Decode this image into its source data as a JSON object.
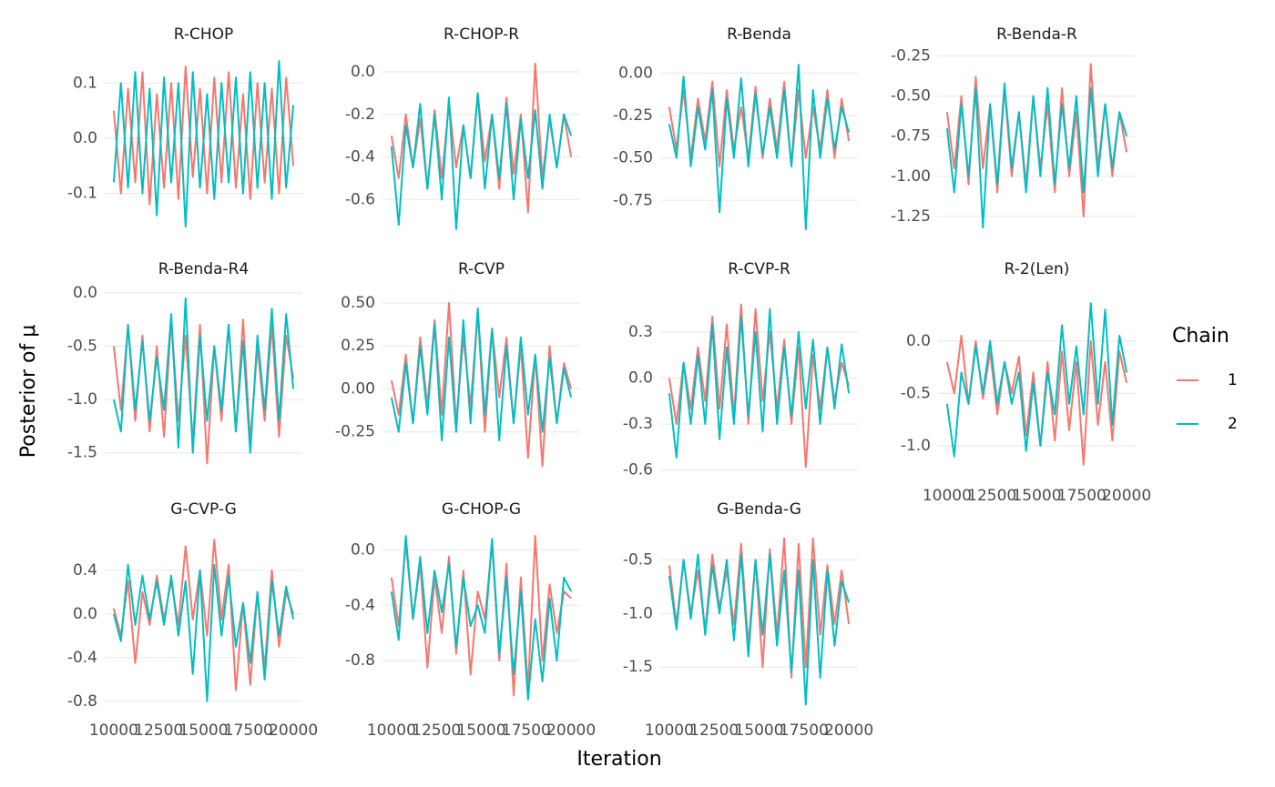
{
  "chart_data": {
    "type": "line",
    "x_label": "Iteration",
    "y_label": "Posterior of μ",
    "legend_title": "Chain",
    "grid": true,
    "series": [
      {
        "name": "1",
        "color": "#F8766D"
      },
      {
        "name": "2",
        "color": "#00BFC4"
      }
    ],
    "x": [
      10000,
      10400,
      10800,
      11200,
      11600,
      12000,
      12400,
      12800,
      13200,
      13600,
      14000,
      14400,
      14800,
      15200,
      15600,
      16000,
      16400,
      16800,
      17200,
      17600,
      18000,
      18400,
      18800,
      19200,
      19600,
      20000
    ],
    "xlim": [
      9500,
      20500
    ],
    "xticks": [
      10000,
      12500,
      15000,
      17500,
      20000
    ],
    "panels": [
      {
        "title": "R-CHOP",
        "ylim": [
          -0.165,
          0.155
        ],
        "yticks": [
          0.1,
          {
            "value": 0,
            "label": "0.0"
          },
          -0.1
        ],
        "values": [
          [
            0.05,
            -0.1,
            0.09,
            -0.08,
            0.12,
            -0.12,
            0.08,
            -0.09,
            0.1,
            -0.11,
            0.13,
            -0.07,
            0.09,
            -0.1,
            0.11,
            -0.08,
            0.12,
            -0.09,
            0.08,
            -0.11,
            0.1,
            -0.08,
            0.09,
            -0.1,
            0.11,
            -0.05
          ],
          [
            -0.08,
            0.1,
            -0.09,
            0.12,
            -0.1,
            0.09,
            -0.14,
            0.11,
            -0.08,
            0.1,
            -0.16,
            0.12,
            -0.09,
            0.08,
            -0.11,
            0.1,
            -0.08,
            0.11,
            -0.1,
            0.12,
            -0.09,
            0.1,
            -0.11,
            0.14,
            -0.09,
            0.06
          ]
        ]
      },
      {
        "title": "R-CHOP-R",
        "ylim": [
          -0.74,
          0.09
        ],
        "yticks": [
          {
            "value": 0,
            "label": "0.0"
          },
          -0.2,
          -0.4,
          -0.6
        ],
        "values": [
          [
            -0.3,
            -0.5,
            -0.2,
            -0.45,
            -0.22,
            -0.55,
            -0.18,
            -0.5,
            -0.15,
            -0.45,
            -0.25,
            -0.5,
            -0.1,
            -0.42,
            -0.2,
            -0.55,
            -0.12,
            -0.48,
            -0.2,
            -0.66,
            0.04,
            -0.5,
            -0.22,
            -0.45,
            -0.2,
            -0.4
          ],
          [
            -0.35,
            -0.72,
            -0.25,
            -0.45,
            -0.15,
            -0.55,
            -0.2,
            -0.6,
            -0.12,
            -0.74,
            -0.25,
            -0.5,
            -0.1,
            -0.55,
            -0.2,
            -0.5,
            -0.15,
            -0.6,
            -0.22,
            -0.5,
            -0.18,
            -0.55,
            -0.2,
            -0.45,
            -0.2,
            -0.3
          ]
        ]
      },
      {
        "title": "R-Benda",
        "ylim": [
          -0.92,
          0.12
        ],
        "yticks": [
          {
            "value": 0,
            "label": "0.00"
          },
          -0.25,
          {
            "value": -0.5,
            "label": "-0.50"
          },
          -0.75
        ],
        "values": [
          [
            -0.2,
            -0.45,
            -0.1,
            -0.5,
            -0.15,
            -0.4,
            -0.05,
            -0.55,
            -0.1,
            -0.45,
            -0.2,
            -0.5,
            -0.08,
            -0.5,
            -0.15,
            -0.45,
            -0.05,
            -0.55,
            -0.1,
            -0.5,
            -0.2,
            -0.45,
            -0.1,
            -0.5,
            -0.15,
            -0.4
          ],
          [
            -0.3,
            -0.5,
            -0.02,
            -0.55,
            -0.2,
            -0.45,
            -0.1,
            -0.82,
            -0.15,
            -0.5,
            -0.03,
            -0.55,
            -0.12,
            -0.48,
            -0.2,
            -0.5,
            -0.1,
            -0.55,
            0.05,
            -0.92,
            -0.1,
            -0.5,
            -0.15,
            -0.45,
            -0.2,
            -0.35
          ]
        ]
      },
      {
        "title": "R-Benda-R",
        "ylim": [
          -1.33,
          -0.23
        ],
        "yticks": [
          -0.25,
          {
            "value": -0.5,
            "label": "-0.50"
          },
          -0.75,
          {
            "value": -1,
            "label": "-1.00"
          },
          -1.25
        ],
        "values": [
          [
            -0.6,
            -0.95,
            -0.5,
            -1.05,
            -0.38,
            -0.95,
            -0.55,
            -1.1,
            -0.45,
            -1.0,
            -0.6,
            -1.05,
            -0.5,
            -0.95,
            -0.55,
            -1.1,
            -0.45,
            -1.0,
            -0.6,
            -1.25,
            -0.3,
            -0.95,
            -0.55,
            -1.0,
            -0.6,
            -0.85
          ],
          [
            -0.7,
            -1.1,
            -0.55,
            -1.0,
            -0.45,
            -1.32,
            -0.55,
            -1.05,
            -0.42,
            -0.95,
            -0.6,
            -1.1,
            -0.5,
            -1.0,
            -0.45,
            -1.05,
            -0.55,
            -0.95,
            -0.5,
            -1.1,
            -0.45,
            -1.0,
            -0.55,
            -0.95,
            -0.6,
            -0.75
          ]
        ]
      },
      {
        "title": "R-Benda-R4",
        "ylim": [
          -1.69,
          0.05
        ],
        "yticks": [
          {
            "value": 0,
            "label": "0.0"
          },
          -0.5,
          {
            "value": -1,
            "label": "-1.0"
          },
          -1.5
        ],
        "values": [
          [
            -0.5,
            -1.1,
            -0.3,
            -1.2,
            -0.4,
            -1.3,
            -0.5,
            -1.35,
            -0.25,
            -1.2,
            -0.4,
            -1.4,
            -0.3,
            -1.6,
            -0.5,
            -1.2,
            -0.3,
            -1.3,
            -0.25,
            -1.4,
            -0.5,
            -1.2,
            -0.3,
            -1.35,
            -0.4,
            -0.8
          ],
          [
            -1.0,
            -1.3,
            -0.3,
            -1.1,
            -0.45,
            -1.2,
            -0.6,
            -1.1,
            -0.2,
            -1.45,
            -0.05,
            -1.5,
            -0.4,
            -1.2,
            -0.5,
            -1.1,
            -0.3,
            -1.3,
            -0.45,
            -1.5,
            -0.4,
            -1.1,
            -0.15,
            -1.2,
            -0.2,
            -0.9
          ]
        ]
      },
      {
        "title": "R-CVP",
        "ylim": [
          -0.49,
          0.59
        ],
        "yticks": [
          {
            "value": 0.5,
            "label": "0.50"
          },
          0.25,
          {
            "value": 0,
            "label": "0.00"
          },
          -0.25
        ],
        "values": [
          [
            0.05,
            -0.15,
            0.2,
            -0.2,
            0.3,
            -0.1,
            0.4,
            -0.15,
            0.5,
            -0.2,
            0.3,
            -0.1,
            0.45,
            -0.25,
            0.35,
            -0.05,
            0.3,
            -0.2,
            0.25,
            -0.4,
            0.2,
            -0.45,
            0.25,
            -0.2,
            0.15,
            0.0
          ],
          [
            -0.05,
            -0.25,
            0.15,
            -0.2,
            0.25,
            -0.15,
            0.38,
            -0.3,
            0.3,
            -0.25,
            0.4,
            -0.2,
            0.47,
            -0.15,
            0.35,
            -0.3,
            0.25,
            -0.2,
            0.3,
            -0.15,
            0.2,
            -0.25,
            0.18,
            -0.2,
            0.12,
            -0.05
          ]
        ]
      },
      {
        "title": "R-CVP-R",
        "ylim": [
          -0.62,
          0.59
        ],
        "yticks": [
          0.3,
          {
            "value": 0,
            "label": "0.0"
          },
          -0.3,
          -0.6
        ],
        "values": [
          [
            0.0,
            -0.3,
            0.1,
            -0.2,
            0.2,
            -0.15,
            0.4,
            -0.2,
            0.35,
            -0.25,
            0.48,
            -0.3,
            0.45,
            -0.15,
            0.3,
            -0.2,
            0.25,
            -0.3,
            0.2,
            -0.58,
            0.15,
            -0.2,
            0.2,
            -0.15,
            0.1,
            -0.05
          ],
          [
            -0.1,
            -0.52,
            0.1,
            -0.3,
            0.15,
            -0.3,
            0.35,
            -0.4,
            0.2,
            -0.3,
            0.4,
            -0.25,
            0.3,
            -0.35,
            0.45,
            -0.3,
            0.2,
            -0.25,
            0.3,
            -0.2,
            0.25,
            -0.3,
            0.2,
            -0.2,
            0.22,
            -0.1
          ]
        ]
      },
      {
        "title": "R-2(Len)",
        "ylim": [
          -1.26,
          0.51
        ],
        "yticks": [
          {
            "value": 0,
            "label": "0.0"
          },
          -0.5,
          {
            "value": -1,
            "label": "-1.0"
          }
        ],
        "values": [
          [
            -0.2,
            -0.5,
            0.05,
            -0.6,
            0.0,
            -0.55,
            -0.1,
            -0.7,
            -0.2,
            -0.5,
            -0.15,
            -0.9,
            -0.3,
            -1.0,
            -0.2,
            -0.95,
            -0.1,
            -0.85,
            -0.2,
            -1.18,
            0.0,
            -0.8,
            -0.2,
            -0.95,
            -0.1,
            -0.4
          ],
          [
            -0.6,
            -1.1,
            -0.3,
            -0.6,
            -0.05,
            -0.5,
            0.0,
            -0.6,
            -0.2,
            -0.6,
            -0.3,
            -1.05,
            -0.4,
            -1.0,
            -0.3,
            -0.7,
            0.15,
            -0.6,
            -0.05,
            -0.7,
            0.36,
            -0.6,
            0.3,
            -0.8,
            0.05,
            -0.3
          ]
        ]
      },
      {
        "title": "G-CVP-G",
        "ylim": [
          -0.86,
          0.79
        ],
        "yticks": [
          0.4,
          {
            "value": 0,
            "label": "0.0"
          },
          -0.4,
          -0.8
        ],
        "values": [
          [
            0.05,
            -0.2,
            0.3,
            -0.45,
            0.2,
            -0.1,
            0.35,
            -0.05,
            0.3,
            -0.1,
            0.62,
            -0.05,
            0.4,
            -0.2,
            0.68,
            -0.05,
            0.45,
            -0.7,
            0.1,
            -0.65,
            0.2,
            -0.5,
            0.4,
            -0.3,
            0.2,
            0.0
          ],
          [
            0.0,
            -0.25,
            0.45,
            -0.1,
            0.35,
            -0.05,
            0.3,
            -0.1,
            0.35,
            -0.2,
            0.3,
            -0.55,
            0.4,
            -0.8,
            0.45,
            -0.2,
            0.35,
            -0.3,
            0.1,
            -0.45,
            0.2,
            -0.6,
            0.3,
            -0.2,
            0.25,
            -0.05
          ]
        ]
      },
      {
        "title": "G-CHOP-G",
        "ylim": [
          -1.14,
          0.16
        ],
        "yticks": [
          {
            "value": 0,
            "label": "0.0"
          },
          -0.4,
          -0.8
        ],
        "values": [
          [
            -0.2,
            -0.55,
            0.05,
            -0.5,
            -0.1,
            -0.85,
            -0.2,
            -0.6,
            -0.05,
            -0.75,
            -0.15,
            -0.9,
            -0.3,
            -0.5,
            0.05,
            -0.8,
            -0.1,
            -1.05,
            -0.2,
            -1.0,
            0.1,
            -0.8,
            -0.25,
            -0.6,
            -0.3,
            -0.35
          ],
          [
            -0.3,
            -0.65,
            0.1,
            -0.5,
            -0.05,
            -0.6,
            -0.15,
            -0.45,
            -0.1,
            -0.7,
            -0.2,
            -0.55,
            -0.4,
            -0.6,
            0.08,
            -0.75,
            -0.2,
            -0.9,
            -0.3,
            -1.08,
            -0.5,
            -0.95,
            -0.35,
            -0.8,
            -0.2,
            -0.3
          ]
        ]
      },
      {
        "title": "G-Benda-G",
        "ylim": [
          -1.88,
          -0.2
        ],
        "yticks": [
          -0.5,
          {
            "value": -1,
            "label": "-1.0"
          },
          -1.5
        ],
        "values": [
          [
            -0.55,
            -1.1,
            -0.5,
            -1.0,
            -0.6,
            -1.15,
            -0.45,
            -0.95,
            -0.6,
            -1.1,
            -0.35,
            -1.3,
            -0.5,
            -1.5,
            -0.4,
            -1.2,
            -0.3,
            -1.6,
            -0.35,
            -1.5,
            -0.3,
            -1.2,
            -0.55,
            -1.1,
            -0.6,
            -1.1
          ],
          [
            -0.65,
            -1.15,
            -0.5,
            -1.05,
            -0.45,
            -1.2,
            -0.55,
            -1.0,
            -0.5,
            -1.25,
            -0.45,
            -1.4,
            -0.5,
            -1.2,
            -0.45,
            -1.3,
            -0.6,
            -1.55,
            -0.6,
            -1.85,
            -0.5,
            -1.6,
            -0.6,
            -1.3,
            -0.7,
            -0.9
          ]
        ]
      }
    ]
  }
}
